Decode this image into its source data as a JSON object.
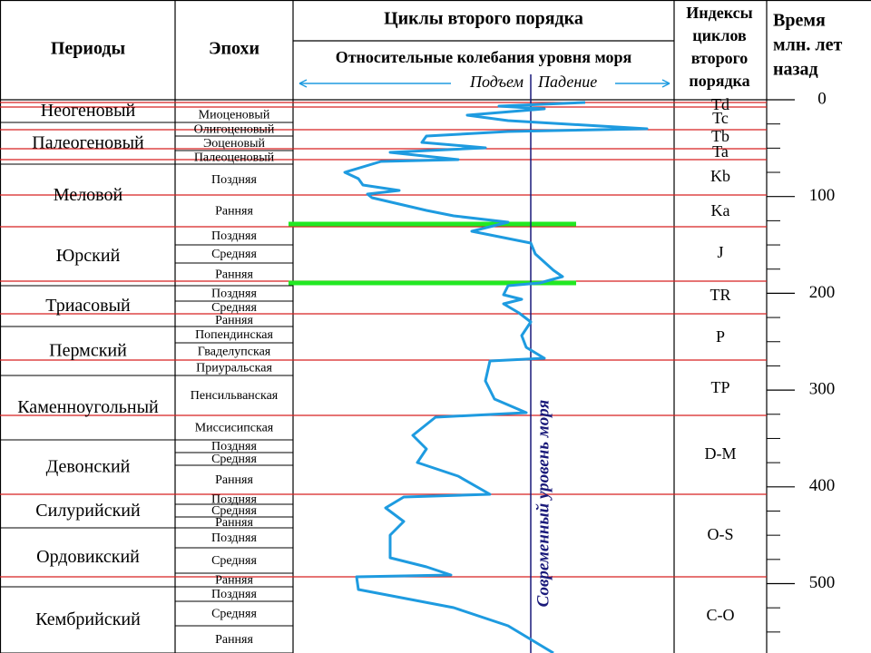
{
  "header": {
    "periods": "Периоды",
    "epochs": "Эпохи",
    "cycles": "Циклы второго порядка",
    "fluctuations": "Относительные колебания уровня моря",
    "rise": "Подъем",
    "fall": "Падение",
    "indices": [
      "Индексы",
      "циклов",
      "второго",
      "порядка"
    ],
    "time": [
      "Время",
      "млн. лет",
      "назад"
    ]
  },
  "periods": [
    "Неогеновый",
    "Палеогеновый",
    "Меловой",
    "Юрский",
    "Триасовый",
    "Пермский",
    "Каменноугольный",
    "Девонский",
    "Силурийский",
    "Ордовикский",
    "Кембрийский"
  ],
  "epochs": [
    "Миоценовый",
    "Олигоценовый",
    "Эоценовый",
    "Палеоценовый",
    "Поздняя",
    "Ранняя",
    "Поздняя",
    "Средняя",
    "Ранняя",
    "Поздняя",
    "Средняя",
    "Ранняя",
    "Попендинская",
    "Гваделупская",
    "Приуральская",
    "Пенсильванская",
    "Миссисипская",
    "Поздняя",
    "Средняя",
    "Ранняя",
    "Поздняя",
    "Средняя",
    "Ранняя",
    "Поздняя",
    "Средняя",
    "Ранняя",
    "Поздняя",
    "Средняя",
    "Ранняя"
  ],
  "indices": [
    "Td",
    "Tc",
    "Tb",
    "Ta",
    "Kb",
    "Ka",
    "J",
    "TR",
    "P",
    "TP",
    "D-M",
    "O-S",
    "C-O"
  ],
  "sea_level_label": "Современный уровень моря",
  "time_scale": [
    0,
    100,
    200,
    300,
    400,
    500
  ]
}
